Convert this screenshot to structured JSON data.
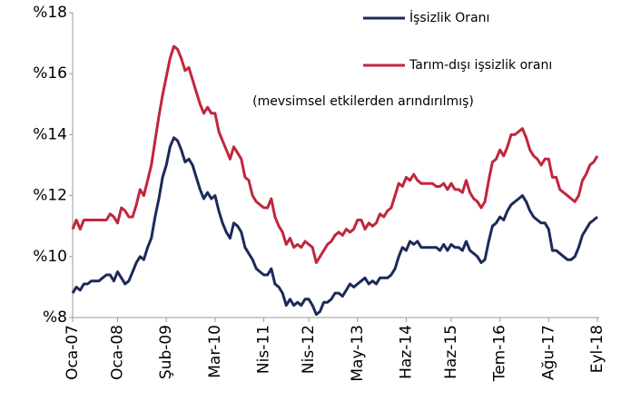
{
  "chart_data": {
    "type": "line",
    "annotation": "(mevsimsel etkilerden arındırılmış)",
    "categories": [
      "Oca-07",
      null,
      null,
      null,
      null,
      null,
      null,
      null,
      null,
      null,
      null,
      null,
      "Oca-08",
      null,
      null,
      null,
      null,
      null,
      null,
      null,
      null,
      null,
      null,
      null,
      null,
      "Şub-09",
      null,
      null,
      null,
      null,
      null,
      null,
      null,
      null,
      null,
      null,
      null,
      null,
      "Mar-10",
      null,
      null,
      null,
      null,
      null,
      null,
      null,
      null,
      null,
      null,
      null,
      null,
      "Nis-11",
      null,
      null,
      null,
      null,
      null,
      null,
      null,
      null,
      null,
      null,
      null,
      "Nis-12",
      null,
      null,
      null,
      null,
      null,
      null,
      null,
      null,
      null,
      null,
      null,
      null,
      "May-13",
      null,
      null,
      null,
      null,
      null,
      null,
      null,
      null,
      null,
      null,
      null,
      null,
      "Haz-14",
      null,
      null,
      null,
      null,
      null,
      null,
      null,
      null,
      null,
      null,
      null,
      "Haz-15",
      null,
      null,
      null,
      null,
      null,
      null,
      null,
      null,
      null,
      null,
      null,
      null,
      "Tem-16",
      null,
      null,
      null,
      null,
      null,
      null,
      null,
      null,
      null,
      null,
      null,
      null,
      "Ağu-17",
      null,
      null,
      null,
      null,
      null,
      null,
      null,
      null,
      null,
      null,
      null,
      null,
      "Eyl-18"
    ],
    "series": [
      {
        "name": "İşsizlik Oranı",
        "color": "#1c2a5a",
        "values": [
          8.8,
          9.0,
          8.9,
          9.1,
          9.1,
          9.2,
          9.2,
          9.2,
          9.3,
          9.4,
          9.4,
          9.2,
          9.5,
          9.3,
          9.1,
          9.2,
          9.5,
          9.8,
          10.0,
          9.9,
          10.3,
          10.6,
          11.3,
          11.9,
          12.6,
          13.0,
          13.6,
          13.9,
          13.8,
          13.5,
          13.1,
          13.2,
          13.0,
          12.6,
          12.2,
          11.9,
          12.1,
          11.9,
          12.0,
          11.5,
          11.1,
          10.8,
          10.6,
          11.1,
          11.0,
          10.8,
          10.3,
          10.1,
          9.9,
          9.6,
          9.5,
          9.4,
          9.4,
          9.6,
          9.1,
          9.0,
          8.8,
          8.4,
          8.6,
          8.4,
          8.5,
          8.4,
          8.6,
          8.6,
          8.4,
          8.1,
          8.2,
          8.5,
          8.5,
          8.6,
          8.8,
          8.8,
          8.7,
          8.9,
          9.1,
          9.0,
          9.1,
          9.2,
          9.3,
          9.1,
          9.2,
          9.1,
          9.3,
          9.3,
          9.3,
          9.4,
          9.6,
          10.0,
          10.3,
          10.2,
          10.5,
          10.4,
          10.5,
          10.3,
          10.3,
          10.3,
          10.3,
          10.3,
          10.2,
          10.4,
          10.2,
          10.4,
          10.3,
          10.3,
          10.2,
          10.5,
          10.2,
          10.1,
          10.0,
          9.8,
          9.9,
          10.5,
          11.0,
          11.1,
          11.3,
          11.2,
          11.5,
          11.7,
          11.8,
          11.9,
          12.0,
          11.8,
          11.5,
          11.3,
          11.2,
          11.1,
          11.1,
          10.9,
          10.2,
          10.2,
          10.1,
          10.0,
          9.9,
          9.9,
          10.0,
          10.3,
          10.7,
          10.9,
          11.1,
          11.2,
          11.3
        ]
      },
      {
        "name": "Tarım-dışı işsizlik oranı",
        "color": "#c1263b",
        "values": [
          10.9,
          11.2,
          10.9,
          11.2,
          11.2,
          11.2,
          11.2,
          11.2,
          11.2,
          11.2,
          11.4,
          11.3,
          11.1,
          11.6,
          11.5,
          11.3,
          11.3,
          11.7,
          12.2,
          12.0,
          12.5,
          13.0,
          13.8,
          14.6,
          15.3,
          15.9,
          16.5,
          16.9,
          16.8,
          16.5,
          16.1,
          16.2,
          15.8,
          15.4,
          15.0,
          14.7,
          14.9,
          14.7,
          14.7,
          14.1,
          13.8,
          13.5,
          13.2,
          13.6,
          13.4,
          13.2,
          12.6,
          12.5,
          12.0,
          11.8,
          11.7,
          11.6,
          11.6,
          11.9,
          11.3,
          11.0,
          10.8,
          10.4,
          10.6,
          10.3,
          10.4,
          10.3,
          10.5,
          10.4,
          10.3,
          9.8,
          10.0,
          10.2,
          10.4,
          10.5,
          10.7,
          10.8,
          10.7,
          10.9,
          10.8,
          10.9,
          11.2,
          11.2,
          10.9,
          11.1,
          11.0,
          11.1,
          11.4,
          11.3,
          11.5,
          11.6,
          12.0,
          12.4,
          12.3,
          12.6,
          12.5,
          12.7,
          12.5,
          12.4,
          12.4,
          12.4,
          12.4,
          12.3,
          12.3,
          12.4,
          12.2,
          12.4,
          12.2,
          12.2,
          12.1,
          12.5,
          12.1,
          11.9,
          11.8,
          11.6,
          11.8,
          12.5,
          13.1,
          13.2,
          13.5,
          13.3,
          13.6,
          14.0,
          14.0,
          14.1,
          14.2,
          13.9,
          13.5,
          13.3,
          13.2,
          13.0,
          13.2,
          13.2,
          12.6,
          12.6,
          12.2,
          12.1,
          12.0,
          11.9,
          11.8,
          12.0,
          12.5,
          12.7,
          13.0,
          13.1,
          13.3
        ]
      }
    ],
    "ylim": [
      8,
      18
    ],
    "yticks": [
      {
        "value": 8,
        "label": "%8"
      },
      {
        "value": 10,
        "label": "%10"
      },
      {
        "value": 12,
        "label": "%12"
      },
      {
        "value": 14,
        "label": "%14"
      },
      {
        "value": 16,
        "label": "%16"
      },
      {
        "value": 18,
        "label": "%18"
      }
    ],
    "grid": false
  }
}
